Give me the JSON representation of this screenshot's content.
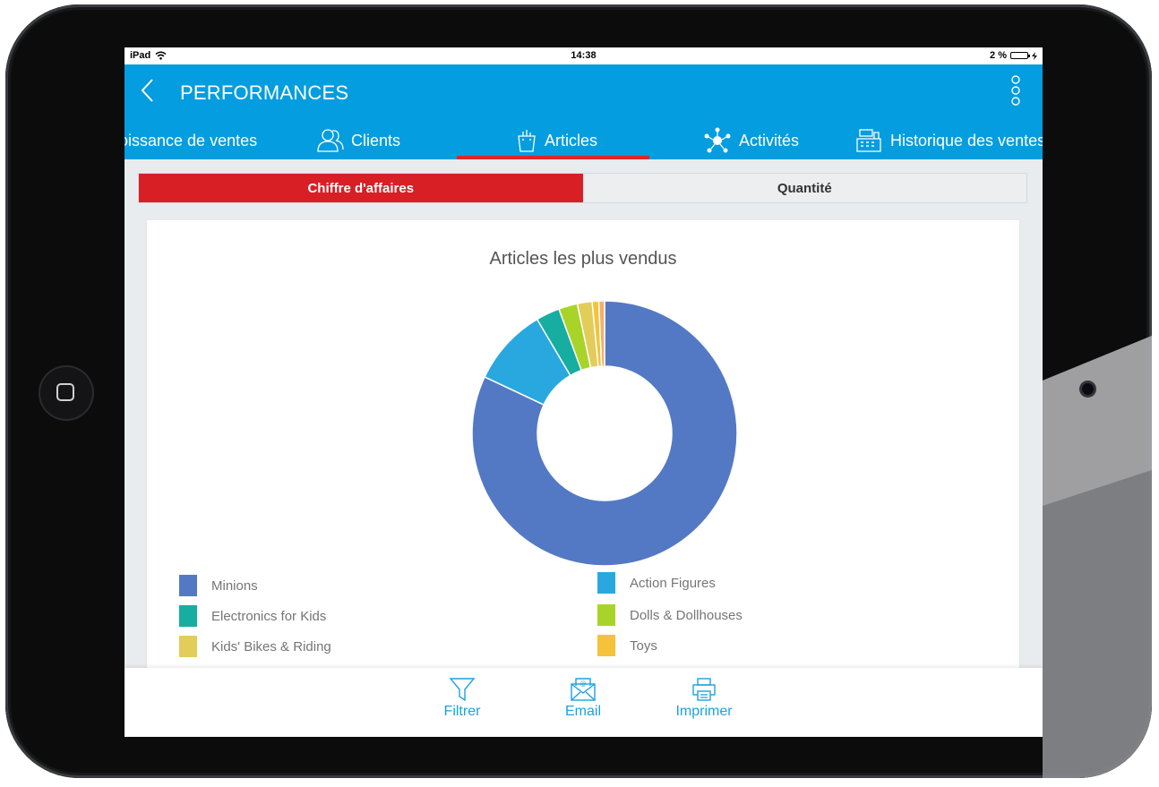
{
  "status_bar": {
    "device": "iPad",
    "time": "14:38",
    "battery": "2 %"
  },
  "header": {
    "title": "PERFORMANCES"
  },
  "tabs": [
    {
      "label": "oissance de ventes",
      "icon": "growth-icon",
      "active": false
    },
    {
      "label": "Clients",
      "icon": "users-icon",
      "active": false
    },
    {
      "label": "Articles",
      "icon": "shopping-bag-icon",
      "active": true
    },
    {
      "label": "Activités",
      "icon": "network-icon",
      "active": false
    },
    {
      "label": "Historique des ventes",
      "icon": "cash-register-icon",
      "active": false
    }
  ],
  "segment": {
    "active_label": "Chiffre d'affaires",
    "inactive_label": "Quantité"
  },
  "colors": {
    "primary": "#039de0",
    "accent": "#d81f26",
    "action": "#1da1e2"
  },
  "chart_data": {
    "type": "pie",
    "title": "Articles les plus vendus",
    "style": "donut",
    "legend_position": "bottom",
    "slices": [
      {
        "label": "Minions",
        "value": 82.0,
        "color": "#5479c4"
      },
      {
        "label": "Action Figures",
        "value": 9.5,
        "color": "#29a8e0"
      },
      {
        "label": "Electronics for Kids",
        "value": 2.9,
        "color": "#17ada0"
      },
      {
        "label": "Dolls & Dollhouses",
        "value": 2.3,
        "color": "#a8d42a"
      },
      {
        "label": "Kids' Bikes & Riding",
        "value": 1.8,
        "color": "#e2cc5a"
      },
      {
        "label": "Toys",
        "value": 0.8,
        "color": "#f5c33b"
      },
      {
        "label": "",
        "value": 0.7,
        "color": "#f2b06a"
      }
    ]
  },
  "bottom_actions": [
    {
      "label": "Filtrer",
      "icon": "filter-icon"
    },
    {
      "label": "Email",
      "icon": "email-icon"
    },
    {
      "label": "Imprimer",
      "icon": "printer-icon"
    }
  ]
}
